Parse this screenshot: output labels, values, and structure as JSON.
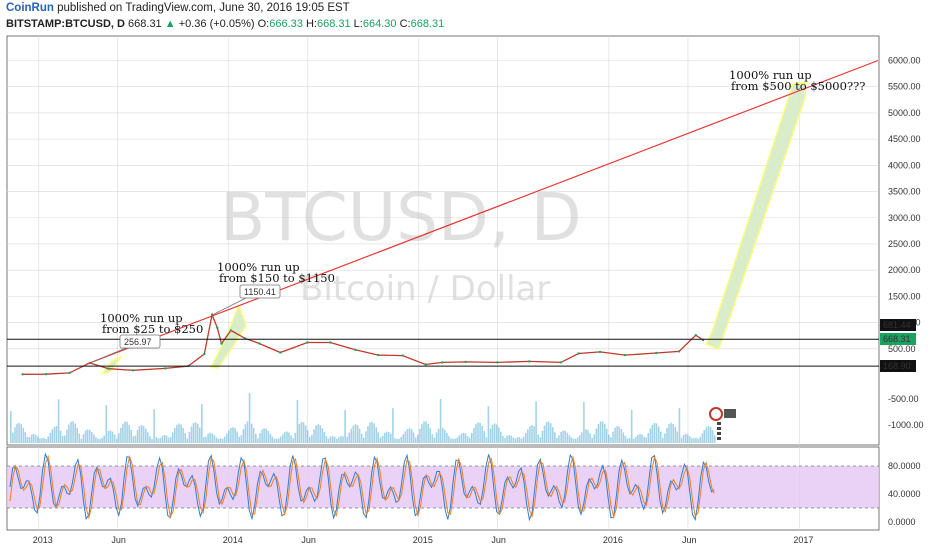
{
  "header": {
    "author": "CoinRun",
    "published_text": "published on TradingView.com, June 30, 2016 19:05 EST",
    "symbol": "BITSTAMP:BTCUSD, D",
    "last": "668.31",
    "change_arrow": "▲",
    "change": "+0.36 (+0.05%)",
    "open_label": "O:",
    "open": "666.33",
    "high_label": "H:",
    "high": "668.31",
    "low_label": "L:",
    "low": "664.30",
    "close_label": "C:",
    "close": "668.31"
  },
  "watermark": {
    "symbol": "BTCUSD, D",
    "name": "Bitcoin / Dollar"
  },
  "colors": {
    "trendline": "#e53935",
    "price_up": "#1aa260",
    "price_down": "#c0392b",
    "volume": "#5aaed6",
    "stoch_k": "#2e7dd1",
    "stoch_d": "#f07f22",
    "stoch_band": "#e5c7f5",
    "highlight_fill": "#d7ecc6",
    "highlight_stroke": "#ffff66",
    "grid": "#d9d9d9"
  },
  "chart_data": [
    {
      "type": "line",
      "x_unit": "date",
      "x_range": [
        "2012-11-01",
        "2017-06-01"
      ],
      "ylim": [
        -500,
        6000
      ],
      "y_ticks": [
        6000,
        5500,
        5000,
        4500,
        4000,
        3500,
        3000,
        2500,
        2000,
        1500,
        1000,
        500
      ],
      "price_labels": [
        "681.44",
        "668.31",
        "168.90"
      ],
      "date_ticks": [
        "2013",
        "Jun",
        "2014",
        "Jun",
        "2015",
        "Jun",
        "2016",
        "Jun",
        "2017"
      ],
      "series": [
        {
          "x": [
            "2012-12-01",
            "2013-01-15",
            "2013-03-01",
            "2013-04-09",
            "2013-05-15",
            "2013-07-01",
            "2013-09-01",
            "2013-10-15",
            "2013-11-15",
            "2013-11-30",
            "2013-12-10",
            "2013-12-18",
            "2014-01-05",
            "2014-02-01",
            "2014-03-01",
            "2014-04-10",
            "2014-06-01",
            "2014-07-15",
            "2014-09-01",
            "2014-10-15",
            "2014-12-01",
            "2015-01-14",
            "2015-02-15",
            "2015-04-01",
            "2015-06-01",
            "2015-08-01",
            "2015-10-01",
            "2015-11-04",
            "2015-12-15",
            "2016-02-01",
            "2016-04-01",
            "2016-05-15",
            "2016-06-16",
            "2016-06-30"
          ],
          "values": [
            13,
            15,
            40,
            230,
            120,
            90,
            125,
            170,
            400,
            1150,
            900,
            600,
            850,
            700,
            600,
            430,
            620,
            620,
            480,
            380,
            370,
            200,
            240,
            250,
            240,
            260,
            240,
            410,
            440,
            380,
            420,
            450,
            760,
            668
          ]
        }
      ],
      "trendline": {
        "x": [
          "2013-04-01",
          "2017-06-01"
        ],
        "values": [
          200,
          6000
        ]
      },
      "horizontal_lines": [
        681.44,
        168.9
      ],
      "annotations": [
        {
          "line1": "1000% run up",
          "line2": "from $25 to $250",
          "x": "2013-04-09",
          "y": 230,
          "label": "256.97"
        },
        {
          "line1": "1000% run up",
          "line2": "from $150 to $1150",
          "x": "2013-12-01",
          "y": 1150,
          "label": "1150.41"
        },
        {
          "line1": "1000% run up",
          "line2": "from $500 to $5000???",
          "x": "2016-12-20",
          "y": 5400,
          "label": ""
        }
      ],
      "volume_ticks": [
        "-500.00",
        "-1000.00"
      ]
    },
    {
      "type": "line",
      "title": "",
      "ylim": [
        0,
        100
      ],
      "y_ticks": [
        "80.0000",
        "40.0000",
        "0.0000"
      ],
      "band": [
        20,
        80
      ],
      "series": [
        {
          "name": "",
          "role": "k"
        },
        {
          "name": "",
          "role": "d"
        }
      ]
    }
  ]
}
